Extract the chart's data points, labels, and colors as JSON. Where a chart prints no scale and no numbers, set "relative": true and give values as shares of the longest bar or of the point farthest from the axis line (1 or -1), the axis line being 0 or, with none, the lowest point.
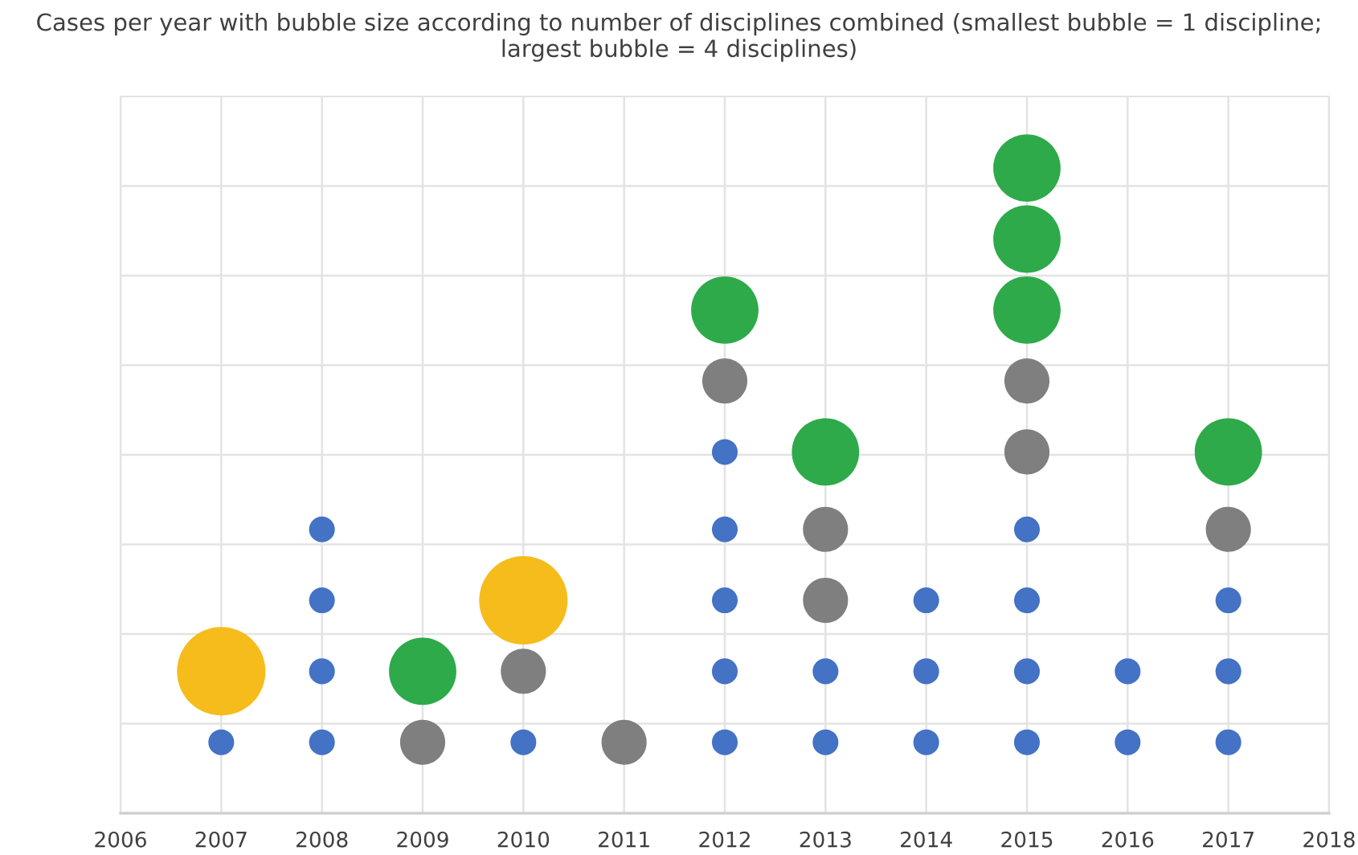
{
  "chart_data": {
    "type": "bubble",
    "title": "Cases per year with bubble size according to number of disciplines combined (smallest bubble = 1 discipline; largest bubble = 4 disciplines)",
    "relative": true,
    "xlim": [
      2006,
      2018
    ],
    "xticks": [
      2006,
      2007,
      2008,
      2009,
      2010,
      2011,
      2012,
      2013,
      2014,
      2015,
      2016,
      2017,
      2018
    ],
    "grid": true,
    "series": [
      {
        "color": "#4472c4",
        "x": [
          2007,
          2008,
          2008,
          2008,
          2008,
          2010,
          2012,
          2012,
          2012,
          2012,
          2012,
          2013,
          2013,
          2014,
          2014,
          2014,
          2015,
          2015,
          2015,
          2015,
          2016,
          2016,
          2017,
          2017,
          2017
        ],
        "values": [
          0.11,
          0.11,
          0.22,
          0.33,
          0.44,
          0.11,
          0.11,
          0.22,
          0.33,
          0.44,
          0.56,
          0.11,
          0.22,
          0.11,
          0.22,
          0.33,
          0.11,
          0.22,
          0.33,
          0.44,
          0.11,
          0.22,
          0.11,
          0.22,
          0.33
        ],
        "sizes": [
          0.085,
          0.085,
          0.085,
          0.085,
          0.085,
          0.085,
          0.085,
          0.085,
          0.085,
          0.085,
          0.085,
          0.085,
          0.085,
          0.085,
          0.085,
          0.085,
          0.085,
          0.085,
          0.085,
          0.085,
          0.085,
          0.085,
          0.085,
          0.085,
          0.085
        ]
      },
      {
        "color": "#7f7f7f",
        "x": [
          2009,
          2010,
          2011,
          2012,
          2013,
          2013,
          2015,
          2015,
          2017
        ],
        "values": [
          0.11,
          0.22,
          0.11,
          0.67,
          0.33,
          0.44,
          0.56,
          0.67,
          0.44
        ],
        "sizes": [
          0.26,
          0.26,
          0.26,
          0.26,
          0.26,
          0.26,
          0.26,
          0.26,
          0.26
        ]
      },
      {
        "color": "#2eaa4a",
        "x": [
          2009,
          2012,
          2013,
          2015,
          2015,
          2015,
          2017
        ],
        "values": [
          0.22,
          0.78,
          0.56,
          0.78,
          0.89,
          1,
          0.56
        ],
        "sizes": [
          0.58,
          0.58,
          0.58,
          0.58,
          0.58,
          0.58,
          0.58
        ]
      },
      {
        "color": "#f5bc1c",
        "x": [
          2007,
          2010
        ],
        "values": [
          0.22,
          0.33
        ],
        "sizes": [
          1,
          1
        ]
      }
    ]
  }
}
